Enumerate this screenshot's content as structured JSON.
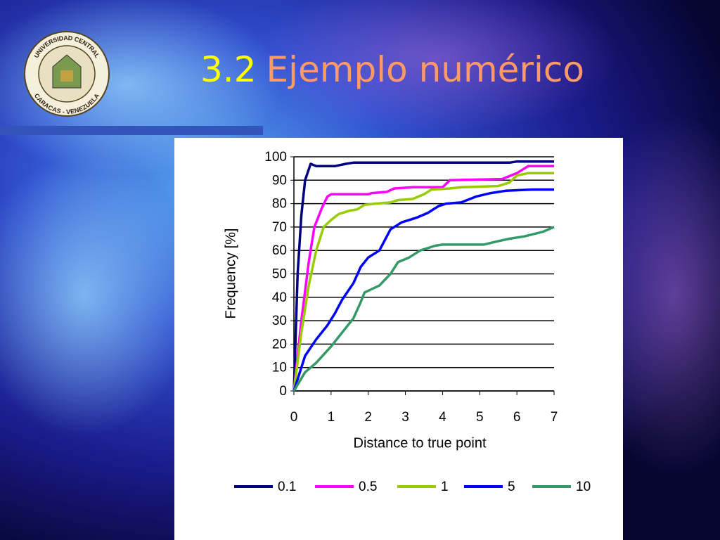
{
  "slide": {
    "title_number": "3.2",
    "title_text": "Ejemplo numérico",
    "logo_top": "UNIVERSIDAD CENTRAL",
    "logo_bottom": "CARACAS - VENEZUELA"
  },
  "chart_data": {
    "type": "line",
    "x_label": "Distance to true point",
    "y_label": "Frequency [%]",
    "xlim": [
      0,
      7
    ],
    "xticks": [
      0,
      1,
      2,
      3,
      4,
      5,
      6,
      7
    ],
    "ylim": [
      0,
      100
    ],
    "yticks": [
      0,
      10,
      20,
      30,
      40,
      50,
      60,
      70,
      80,
      90,
      100
    ],
    "grid": true,
    "legend": "bottom",
    "series": [
      {
        "name": "0.1",
        "color": "#000080",
        "x": [
          0,
          0.1,
          0.2,
          0.3,
          0.45,
          0.6,
          1.1,
          1.4,
          1.6,
          5.8,
          6,
          7
        ],
        "values": [
          0,
          50,
          75,
          90,
          97,
          96,
          96,
          97,
          97.5,
          97.5,
          98,
          98
        ]
      },
      {
        "name": "0.5",
        "color": "#ff00ff",
        "x": [
          0,
          0.2,
          0.4,
          0.55,
          0.75,
          0.9,
          1,
          2,
          2.1,
          2.5,
          2.7,
          3.2,
          4,
          4.2,
          5.6,
          6,
          6.3,
          7
        ],
        "values": [
          0,
          30,
          55,
          70,
          78,
          83,
          84,
          84,
          84.5,
          85,
          86.5,
          87,
          87,
          90,
          90.5,
          93,
          96,
          96
        ]
      },
      {
        "name": "1",
        "color": "#99cc00",
        "x": [
          0,
          0.2,
          0.4,
          0.6,
          0.8,
          1,
          1.2,
          1.5,
          1.7,
          1.9,
          2.2,
          2.6,
          2.8,
          3.2,
          3.5,
          3.7,
          4.2,
          4.5,
          5.5,
          5.8,
          6,
          6.3,
          7
        ],
        "values": [
          0,
          25,
          45,
          60,
          70,
          73,
          75.5,
          77,
          77.5,
          79.5,
          80,
          80.5,
          81.5,
          82,
          84,
          86,
          86.5,
          87,
          87.5,
          89,
          92,
          93,
          93
        ]
      },
      {
        "name": "5",
        "color": "#0000ff",
        "x": [
          0,
          0.3,
          0.6,
          0.9,
          1.1,
          1.3,
          1.6,
          1.8,
          2,
          2.3,
          2.6,
          2.9,
          3.1,
          3.3,
          3.6,
          3.9,
          4.1,
          4.5,
          4.9,
          5.3,
          5.7,
          6.4,
          7
        ],
        "values": [
          0,
          15,
          22,
          28,
          33,
          39,
          46,
          53,
          57,
          60,
          69,
          72,
          73,
          74,
          76,
          79,
          80,
          80.5,
          83,
          84.5,
          85.5,
          86,
          86
        ]
      },
      {
        "name": "10",
        "color": "#339966",
        "x": [
          0,
          0.3,
          0.6,
          1,
          1.3,
          1.6,
          1.8,
          1.9,
          2.3,
          2.6,
          2.8,
          3.1,
          3.4,
          3.8,
          4,
          5.1,
          5.5,
          5.8,
          6.2,
          6.7,
          7
        ],
        "values": [
          0,
          8,
          12,
          19,
          25,
          31,
          38,
          42,
          45,
          50,
          55,
          57,
          60,
          62,
          62.5,
          62.5,
          64,
          65,
          66,
          68,
          70
        ]
      }
    ]
  }
}
